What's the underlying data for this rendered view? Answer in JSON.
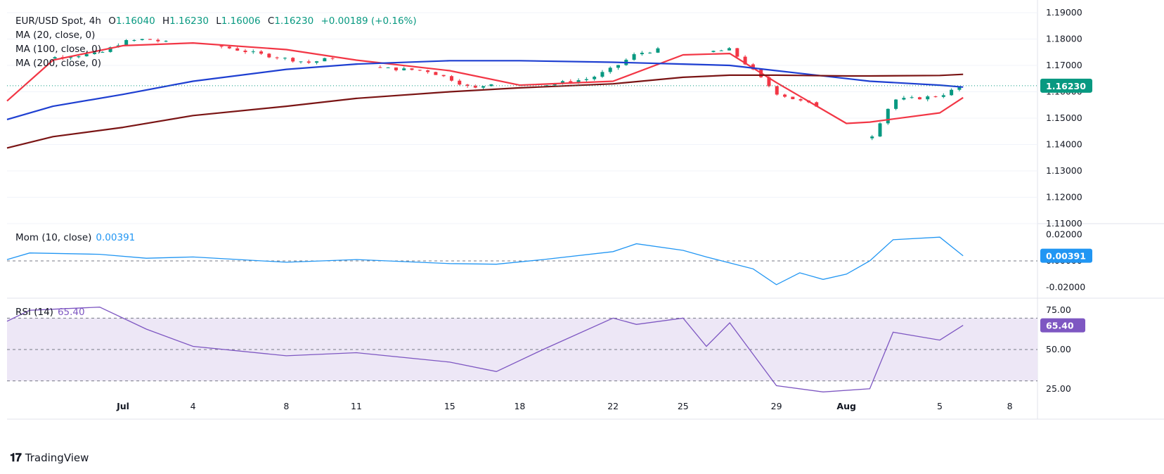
{
  "header": {
    "symbol": "EUR/USD Spot, 4h",
    "open_label": "O",
    "open": "1.16040",
    "high_label": "H",
    "high": "1.16230",
    "low_label": "L",
    "low": "1.16006",
    "close_label": "C",
    "close": "1.16230",
    "change": "+0.00189 (+0.16%)",
    "ma20": "MA (20, close, 0)",
    "ma100": "MA (100, close, 0)",
    "ma200": "MA (200, close, 0)"
  },
  "mom_legend": {
    "label": "Mom (10, close)",
    "value": "0.00391"
  },
  "rsi_legend": {
    "label": "RSI (14)",
    "value": "65.40"
  },
  "branding": {
    "name": "TradingView"
  },
  "colors": {
    "up": "#089981",
    "down": "#f23645",
    "ma20": "#f23645",
    "ma100": "#1e3fd1",
    "ma200": "#7a1414",
    "mom": "#2196f3",
    "rsi": "#7e57c2",
    "rsi_band": "#ede7f6",
    "grid": "#f0f3fa",
    "axis_text": "#131722"
  },
  "chart_data": [
    {
      "type": "candlestick",
      "title": "EUR/USD Spot, 4h",
      "ylim": [
        1.11,
        1.19
      ],
      "y_ticks": [
        "1.19000",
        "1.18000",
        "1.17000",
        "1.16000",
        "1.15000",
        "1.14000",
        "1.13000",
        "1.12000",
        "1.11000"
      ],
      "x_ticks": [
        "Jul",
        "4",
        "8",
        "11",
        "15",
        "18",
        "22",
        "25",
        "29",
        "Aug",
        "5",
        "8"
      ],
      "last_price": "1.16230",
      "ma_anchor_dates": [
        "Jun 24",
        "Jun 28",
        "Jul 1",
        "Jul 4",
        "Jul 8",
        "Jul 11",
        "Jul 15",
        "Jul 18",
        "Jul 22",
        "Jul 25",
        "Jul 27",
        "Jul 29",
        "Aug 1",
        "Aug 2",
        "Aug 5",
        "Aug 6"
      ],
      "series": [
        {
          "name": "MA (20, close, 0)",
          "values": [
            1.1565,
            1.172,
            1.1775,
            1.1785,
            1.176,
            1.172,
            1.168,
            1.1625,
            1.164,
            1.174,
            1.1745,
            1.1635,
            1.148,
            1.1485,
            1.152,
            1.1578
          ]
        },
        {
          "name": "MA (100, close, 0)",
          "values": [
            1.1495,
            1.1545,
            1.159,
            1.164,
            1.1685,
            1.1705,
            1.1718,
            1.1718,
            1.1712,
            1.1705,
            1.17,
            1.168,
            1.165,
            1.164,
            1.1625,
            1.1618
          ]
        },
        {
          "name": "MA (200, close, 0)",
          "values": [
            1.1387,
            1.143,
            1.1465,
            1.151,
            1.1545,
            1.1575,
            1.16,
            1.1615,
            1.163,
            1.1655,
            1.1663,
            1.1663,
            1.166,
            1.166,
            1.1662,
            1.1666
          ]
        }
      ],
      "price_path": {
        "dates": [
          "Jun 24",
          "Jun 26",
          "Jun 28",
          "Jun 30",
          "Jul 1",
          "Jul 2",
          "Jul 3",
          "Jul 4",
          "Jul 5",
          "Jul 7",
          "Jul 8",
          "Jul 9",
          "Jul 10",
          "Jul 11",
          "Jul 12",
          "Jul 14",
          "Jul 15",
          "Jul 16",
          "Jul 17",
          "Jul 18",
          "Jul 19",
          "Jul 21",
          "Jul 22",
          "Jul 23",
          "Jul 24",
          "Jul 25",
          "Jul 26",
          "Jul 27",
          "Jul 28",
          "Jul 29",
          "Jul 30",
          "Jul 31",
          "Aug 1",
          "Aug 2",
          "Aug 3",
          "Aug 4",
          "Aug 5",
          "Aug 6"
        ],
        "close": [
          1.1625,
          1.17,
          1.173,
          1.1745,
          1.179,
          1.18,
          1.1785,
          1.177,
          1.1775,
          1.174,
          1.1725,
          1.171,
          1.173,
          1.17,
          1.169,
          1.168,
          1.165,
          1.161,
          1.164,
          1.161,
          1.1625,
          1.165,
          1.169,
          1.1745,
          1.176,
          1.177,
          1.175,
          1.176,
          1.168,
          1.1595,
          1.1565,
          1.154,
          1.1435,
          1.142,
          1.157,
          1.1575,
          1.1585,
          1.1623
        ]
      }
    },
    {
      "type": "line",
      "title": "Mom (10, close)",
      "ylim": [
        -0.025,
        0.025
      ],
      "y_ticks": [
        "0.02000",
        "0.00000",
        "-0.02000"
      ],
      "last_value": "0.00391",
      "x": [
        "Jun 24",
        "Jun 27",
        "Jun 30",
        "Jul 2",
        "Jul 4",
        "Jul 8",
        "Jul 11",
        "Jul 15",
        "Jul 17",
        "Jul 19",
        "Jul 22",
        "Jul 23",
        "Jul 25",
        "Jul 26",
        "Jul 28",
        "Jul 29",
        "Jul 30",
        "Jul 31",
        "Aug 1",
        "Aug 2",
        "Aug 3",
        "Aug 5",
        "Aug 6"
      ],
      "values": [
        0.001,
        0.006,
        0.005,
        0.002,
        0.003,
        -0.001,
        0.001,
        -0.002,
        -0.0025,
        0.001,
        0.007,
        0.013,
        0.008,
        0.003,
        -0.006,
        -0.018,
        -0.009,
        -0.014,
        -0.01,
        0.0,
        0.016,
        0.018,
        0.0039
      ]
    },
    {
      "type": "line",
      "title": "RSI (14)",
      "ylim": [
        20,
        80
      ],
      "y_ticks": [
        "75.00",
        "50.00",
        "25.00"
      ],
      "band": [
        30,
        70
      ],
      "last_value": "65.40",
      "x": [
        "Jun 24",
        "Jun 27",
        "Jun 30",
        "Jul 2",
        "Jul 4",
        "Jul 8",
        "Jul 11",
        "Jul 15",
        "Jul 17",
        "Jul 19",
        "Jul 22",
        "Jul 23",
        "Jul 25",
        "Jul 26",
        "Jul 27",
        "Jul 29",
        "Jul 31",
        "Aug 2",
        "Aug 3",
        "Aug 5",
        "Aug 6"
      ],
      "values": [
        68,
        75,
        77,
        63,
        52,
        46,
        48,
        42,
        36,
        50,
        70,
        66,
        70,
        52,
        67,
        27,
        23,
        25,
        61,
        56,
        65.4
      ]
    }
  ]
}
